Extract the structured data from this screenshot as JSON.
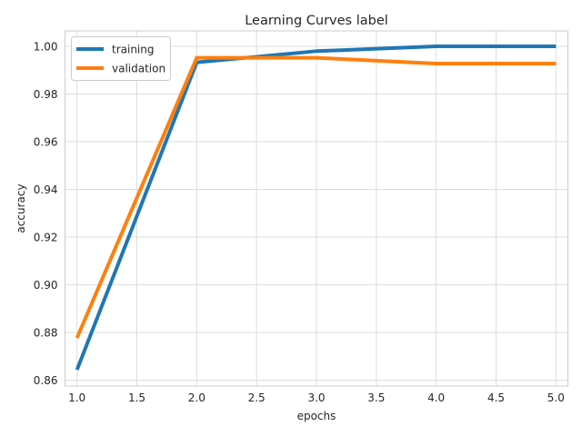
{
  "chart_data": {
    "type": "line",
    "title": "Learning Curves label",
    "xlabel": "epochs",
    "ylabel": "accuracy",
    "x": [
      1,
      2,
      3,
      4,
      5
    ],
    "xlim": [
      0.9,
      5.1
    ],
    "ylim": [
      0.8575,
      1.0065
    ],
    "xticks": [
      "1.0",
      "1.5",
      "2.0",
      "2.5",
      "3.0",
      "3.5",
      "4.0",
      "4.5",
      "5.0"
    ],
    "yticks": [
      "0.86",
      "0.88",
      "0.90",
      "0.92",
      "0.94",
      "0.96",
      "0.98",
      "1.00"
    ],
    "grid": true,
    "legend_position": "upper-left",
    "series": [
      {
        "name": "training",
        "color": "#1f77b4",
        "values": [
          0.8643,
          0.9933,
          0.998,
          1.0,
          1.0
        ]
      },
      {
        "name": "validation",
        "color": "#ff7f0e",
        "values": [
          0.8777,
          0.9952,
          0.9952,
          0.9928,
          0.9928
        ]
      }
    ]
  }
}
